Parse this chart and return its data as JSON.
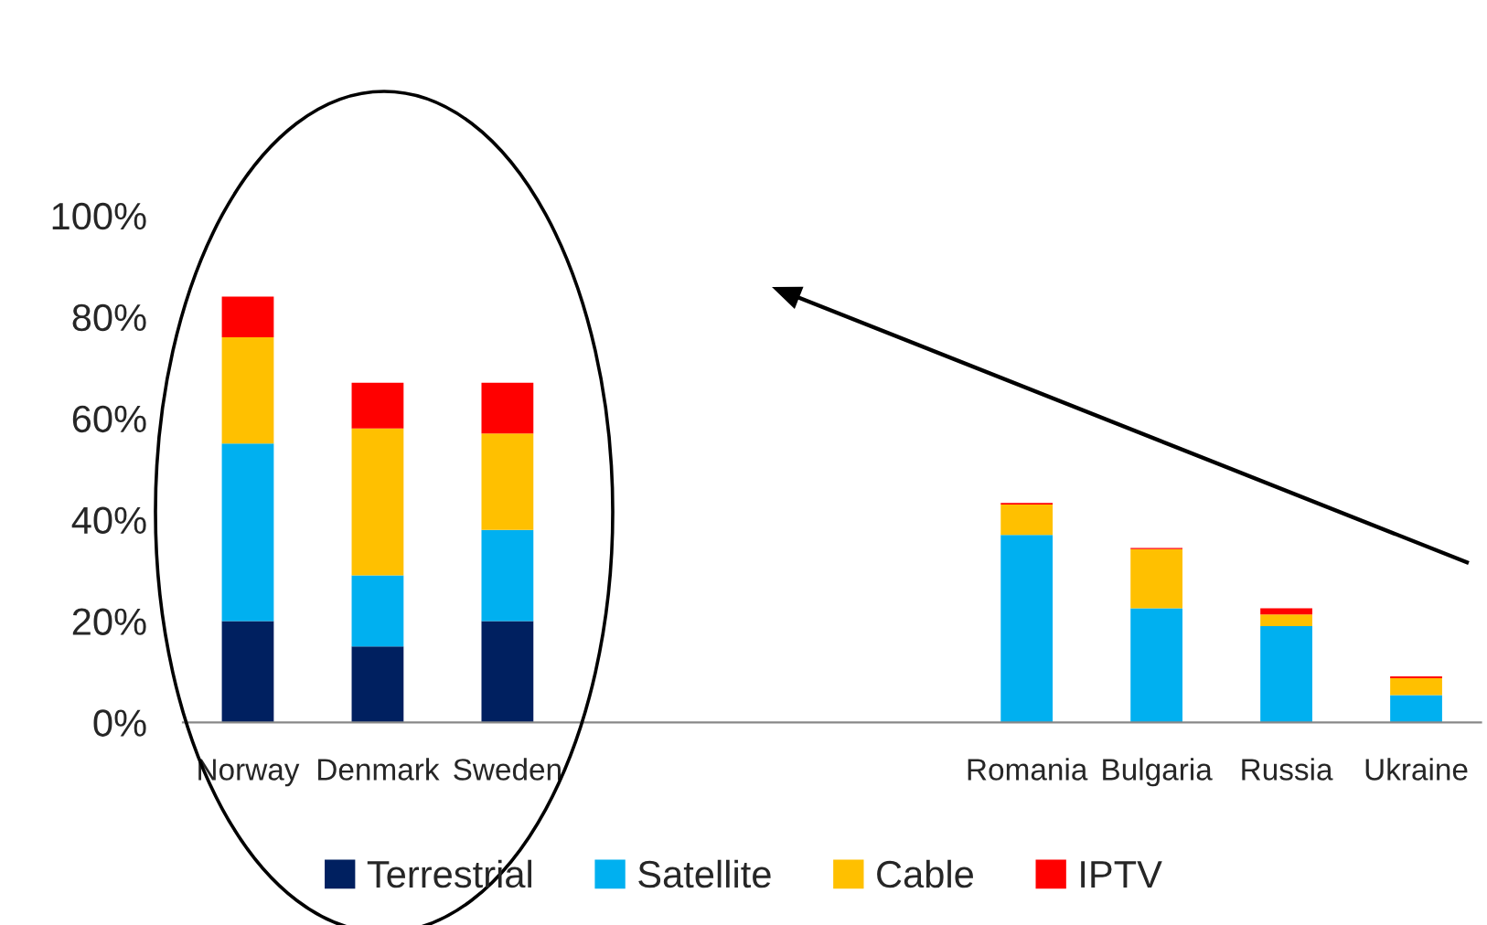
{
  "chart_data": {
    "type": "bar",
    "stacked": true,
    "categories": [
      "Norway",
      "Denmark",
      "Sweden",
      null,
      null,
      null,
      "Romania",
      "Bulgaria",
      "Russia",
      "Ukraine"
    ],
    "series": [
      {
        "name": "Terrestrial",
        "color": "#002060",
        "values": [
          20,
          15,
          20,
          null,
          null,
          null,
          0,
          0,
          0,
          0
        ]
      },
      {
        "name": "Satellite",
        "color": "#00b0f0",
        "values": [
          35,
          14,
          18,
          null,
          null,
          null,
          37,
          22.5,
          19,
          5.4
        ]
      },
      {
        "name": "Cable",
        "color": "#ffc000",
        "values": [
          21,
          29,
          19,
          null,
          null,
          null,
          6,
          11.7,
          2.3,
          3.3
        ]
      },
      {
        "name": "IPTV",
        "color": "#ff0000",
        "values": [
          8,
          9,
          10,
          null,
          null,
          null,
          0.3,
          0.2,
          1.2,
          0.4
        ]
      }
    ],
    "ylim": [
      0,
      100
    ],
    "yticks": [
      {
        "value": 0,
        "label": "0%"
      },
      {
        "value": 20,
        "label": "20%"
      },
      {
        "value": 40,
        "label": "40%"
      },
      {
        "value": 60,
        "label": "60%"
      },
      {
        "value": 80,
        "label": "80%"
      },
      {
        "value": 100,
        "label": "100%"
      }
    ],
    "grid": false,
    "legend": "bottom"
  }
}
